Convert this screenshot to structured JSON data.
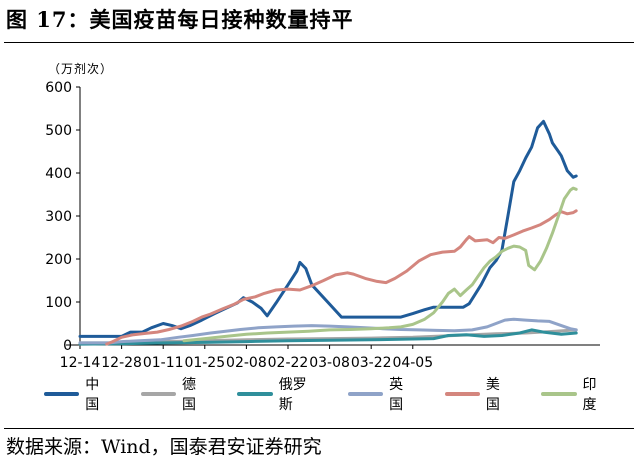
{
  "figure": {
    "title": "图 17：美国疫苗每日接种数量持平",
    "unit": "（万剂次）",
    "source": "数据来源：Wind，国泰君安证券研究"
  },
  "chart_data": {
    "type": "line",
    "title": "图 17：美国疫苗每日接种数量持平",
    "xlabel": "",
    "ylabel": "（万剂次）",
    "x_tick_labels": [
      "12-14",
      "12-28",
      "01-11",
      "01-25",
      "02-08",
      "02-22",
      "03-08",
      "03-22",
      "04-05"
    ],
    "ylim": [
      0,
      600
    ],
    "y_ticks": [
      0,
      100,
      200,
      300,
      400,
      500,
      600
    ],
    "grid": false,
    "legend_position": "bottom",
    "x_unit": "day offset from 12-14 (2020-12-14 = 0)",
    "series": [
      {
        "name": "中国",
        "color": "#1f5b99",
        "points": [
          [
            0,
            20
          ],
          [
            7,
            20
          ],
          [
            14,
            20
          ],
          [
            17,
            30
          ],
          [
            21,
            30
          ],
          [
            24,
            40
          ],
          [
            28,
            50
          ],
          [
            31,
            45
          ],
          [
            34,
            38
          ],
          [
            37,
            45
          ],
          [
            41,
            58
          ],
          [
            45,
            72
          ],
          [
            49,
            85
          ],
          [
            53,
            98
          ],
          [
            55,
            110
          ],
          [
            58,
            100
          ],
          [
            61,
            85
          ],
          [
            63,
            68
          ],
          [
            66,
            98
          ],
          [
            70,
            140
          ],
          [
            73,
            172
          ],
          [
            74,
            192
          ],
          [
            76,
            178
          ],
          [
            78,
            140
          ],
          [
            84,
            95
          ],
          [
            88,
            65
          ],
          [
            94,
            65
          ],
          [
            101,
            65
          ],
          [
            108,
            65
          ],
          [
            112,
            73
          ],
          [
            116,
            82
          ],
          [
            119,
            88
          ],
          [
            126,
            88
          ],
          [
            129,
            88
          ],
          [
            131,
            96
          ],
          [
            135,
            140
          ],
          [
            138,
            180
          ],
          [
            140,
            196
          ],
          [
            142,
            220
          ],
          [
            144,
            300
          ],
          [
            146,
            380
          ],
          [
            148,
            405
          ],
          [
            150,
            435
          ],
          [
            152,
            460
          ],
          [
            154,
            505
          ],
          [
            156,
            520
          ],
          [
            158,
            490
          ],
          [
            159,
            470
          ],
          [
            161,
            450
          ],
          [
            162,
            440
          ],
          [
            164,
            405
          ],
          [
            166,
            390
          ],
          [
            167,
            393
          ]
        ]
      },
      {
        "name": "德国",
        "color": "#a6a6a6",
        "points": [
          [
            0,
            5
          ],
          [
            14,
            5
          ],
          [
            28,
            8
          ],
          [
            42,
            10
          ],
          [
            56,
            12
          ],
          [
            70,
            14
          ],
          [
            84,
            15
          ],
          [
            98,
            16
          ],
          [
            112,
            18
          ],
          [
            126,
            22
          ],
          [
            140,
            26
          ],
          [
            150,
            28
          ],
          [
            160,
            32
          ],
          [
            167,
            35
          ]
        ]
      },
      {
        "name": "俄罗斯",
        "color": "#2f8f9b",
        "points": [
          [
            0,
            2
          ],
          [
            14,
            3
          ],
          [
            28,
            5
          ],
          [
            42,
            6
          ],
          [
            56,
            8
          ],
          [
            70,
            10
          ],
          [
            84,
            11
          ],
          [
            98,
            12
          ],
          [
            112,
            14
          ],
          [
            119,
            15
          ],
          [
            124,
            22
          ],
          [
            130,
            24
          ],
          [
            136,
            20
          ],
          [
            142,
            22
          ],
          [
            148,
            28
          ],
          [
            152,
            35
          ],
          [
            156,
            30
          ],
          [
            162,
            25
          ],
          [
            167,
            28
          ]
        ]
      },
      {
        "name": "英国",
        "color": "#8fa3c8",
        "points": [
          [
            0,
            5
          ],
          [
            10,
            5
          ],
          [
            14,
            8
          ],
          [
            20,
            10
          ],
          [
            27,
            12
          ],
          [
            33,
            18
          ],
          [
            38,
            22
          ],
          [
            44,
            28
          ],
          [
            49,
            32
          ],
          [
            54,
            36
          ],
          [
            60,
            40
          ],
          [
            66,
            42
          ],
          [
            72,
            44
          ],
          [
            78,
            45
          ],
          [
            84,
            44
          ],
          [
            90,
            42
          ],
          [
            96,
            40
          ],
          [
            102,
            38
          ],
          [
            108,
            36
          ],
          [
            114,
            35
          ],
          [
            120,
            34
          ],
          [
            126,
            33
          ],
          [
            132,
            35
          ],
          [
            137,
            42
          ],
          [
            140,
            50
          ],
          [
            143,
            58
          ],
          [
            146,
            60
          ],
          [
            150,
            58
          ],
          [
            154,
            56
          ],
          [
            158,
            55
          ],
          [
            162,
            45
          ],
          [
            165,
            38
          ],
          [
            167,
            35
          ]
        ]
      },
      {
        "name": "美国",
        "color": "#d4867e",
        "points": [
          [
            9,
            2
          ],
          [
            11,
            8
          ],
          [
            14,
            18
          ],
          [
            18,
            24
          ],
          [
            22,
            27
          ],
          [
            26,
            30
          ],
          [
            30,
            36
          ],
          [
            34,
            44
          ],
          [
            38,
            55
          ],
          [
            41,
            65
          ],
          [
            44,
            72
          ],
          [
            48,
            84
          ],
          [
            52,
            95
          ],
          [
            55,
            106
          ],
          [
            59,
            112
          ],
          [
            62,
            120
          ],
          [
            66,
            128
          ],
          [
            70,
            130
          ],
          [
            74,
            128
          ],
          [
            78,
            138
          ],
          [
            82,
            150
          ],
          [
            86,
            163
          ],
          [
            90,
            168
          ],
          [
            92,
            165
          ],
          [
            96,
            155
          ],
          [
            100,
            148
          ],
          [
            103,
            145
          ],
          [
            106,
            155
          ],
          [
            110,
            172
          ],
          [
            114,
            195
          ],
          [
            118,
            210
          ],
          [
            122,
            216
          ],
          [
            126,
            218
          ],
          [
            128,
            228
          ],
          [
            130,
            245
          ],
          [
            131,
            252
          ],
          [
            133,
            242
          ],
          [
            137,
            245
          ],
          [
            139,
            238
          ],
          [
            141,
            250
          ],
          [
            143,
            248
          ],
          [
            146,
            256
          ],
          [
            149,
            265
          ],
          [
            152,
            272
          ],
          [
            155,
            280
          ],
          [
            158,
            292
          ],
          [
            160,
            302
          ],
          [
            162,
            310
          ],
          [
            164,
            305
          ],
          [
            166,
            308
          ],
          [
            167,
            312
          ]
        ]
      },
      {
        "name": "印度",
        "color": "#a9c58a",
        "points": [
          [
            35,
            10
          ],
          [
            42,
            15
          ],
          [
            49,
            20
          ],
          [
            56,
            25
          ],
          [
            63,
            28
          ],
          [
            70,
            30
          ],
          [
            77,
            32
          ],
          [
            84,
            35
          ],
          [
            91,
            36
          ],
          [
            98,
            38
          ],
          [
            104,
            40
          ],
          [
            108,
            42
          ],
          [
            112,
            48
          ],
          [
            116,
            60
          ],
          [
            119,
            75
          ],
          [
            122,
            100
          ],
          [
            124,
            120
          ],
          [
            126,
            130
          ],
          [
            128,
            115
          ],
          [
            130,
            128
          ],
          [
            132,
            140
          ],
          [
            134,
            160
          ],
          [
            136,
            180
          ],
          [
            138,
            195
          ],
          [
            140,
            205
          ],
          [
            142,
            218
          ],
          [
            144,
            225
          ],
          [
            146,
            230
          ],
          [
            148,
            228
          ],
          [
            150,
            220
          ],
          [
            151,
            185
          ],
          [
            153,
            175
          ],
          [
            155,
            195
          ],
          [
            157,
            225
          ],
          [
            159,
            260
          ],
          [
            161,
            300
          ],
          [
            163,
            340
          ],
          [
            165,
            360
          ],
          [
            166,
            365
          ],
          [
            167,
            362
          ]
        ]
      }
    ]
  }
}
